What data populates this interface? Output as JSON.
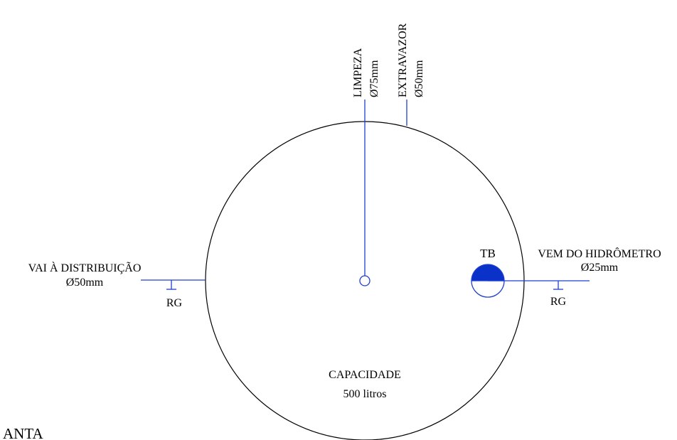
{
  "colors": {
    "pipe": "#1f3fd0",
    "outline": "#000000",
    "float_valve_fill": "#0a32c8"
  },
  "labels": {
    "limpeza": "LIMPEZA",
    "limpeza_diameter": "Ø75mm",
    "extravazor": "EXTRAVAZOR",
    "extravazor_diameter": "Ø50mm",
    "vai_distribuicao": "VAI À DISTRIBUIÇÃO",
    "vai_distribuicao_diameter": "Ø50mm",
    "rg_left": "RG",
    "tb": "TB",
    "vem_hidrometro": "VEM DO HIDRÔMETRO",
    "vem_hidrometro_diameter": "Ø25mm",
    "rg_right": "RG",
    "capacidade": "CAPACIDADE",
    "capacidade_value": "500 litros",
    "planta": "ANTA"
  }
}
